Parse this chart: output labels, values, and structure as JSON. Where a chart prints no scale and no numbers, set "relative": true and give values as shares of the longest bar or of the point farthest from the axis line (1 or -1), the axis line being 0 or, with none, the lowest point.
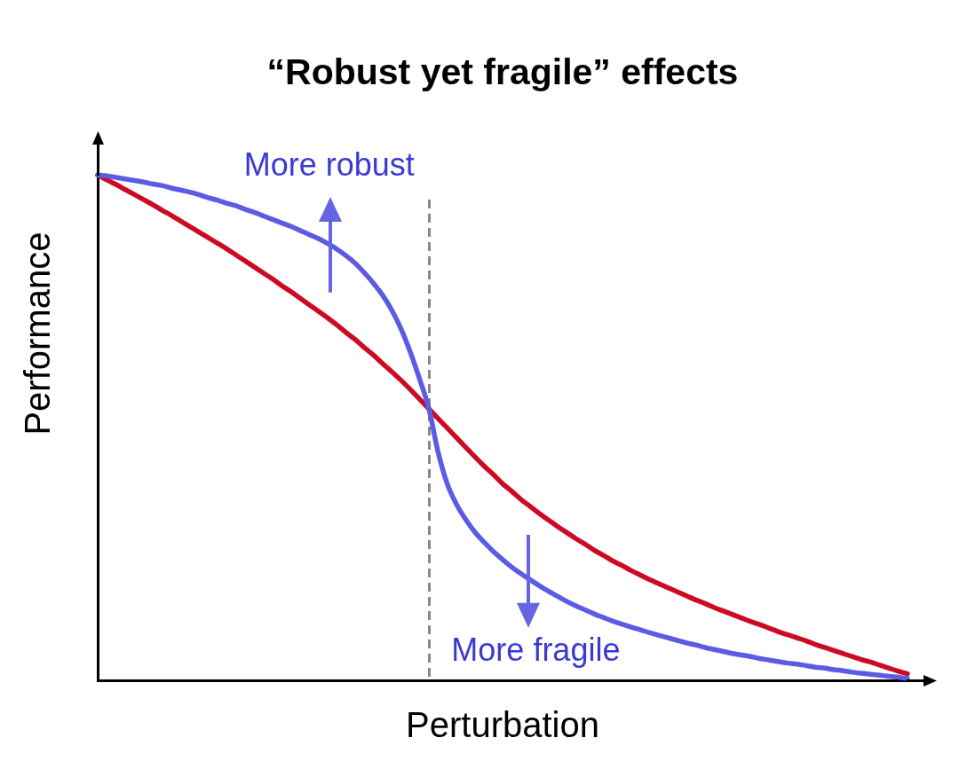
{
  "chart_data": {
    "type": "line",
    "title": "“Robust yet fragile” effects",
    "xlabel": "Perturbation",
    "ylabel": "Performance",
    "relative": true,
    "categories": [
      null,
      null,
      null,
      null,
      null,
      null,
      null,
      null,
      null,
      null,
      null,
      null,
      null,
      null,
      null,
      null,
      null,
      null,
      null,
      null,
      null,
      null,
      null,
      null,
      null,
      null,
      null,
      null,
      null,
      null,
      null,
      null,
      null,
      null,
      null,
      null,
      null,
      null,
      null,
      null,
      null,
      null,
      null,
      null,
      null,
      null,
      null,
      null,
      null,
      null,
      null,
      null,
      null,
      null,
      null,
      null,
      null,
      null,
      null,
      null,
      null,
      null,
      null,
      null,
      null,
      null,
      null,
      null,
      null,
      null,
      null,
      null,
      null,
      null,
      null,
      null,
      null,
      null,
      null,
      null,
      null,
      null,
      null,
      null,
      null,
      null,
      null,
      null,
      null
    ],
    "series": [
      {
        "color": "#cc0a24",
        "values": [
          1.0,
          0.99,
          0.981,
          0.971,
          0.961,
          0.951,
          0.941,
          0.93,
          0.92,
          0.909,
          0.898,
          0.887,
          0.876,
          0.865,
          0.854,
          0.842,
          0.83,
          0.818,
          0.806,
          0.794,
          0.781,
          0.769,
          0.756,
          0.743,
          0.73,
          0.717,
          0.703,
          0.688,
          0.674,
          0.658,
          0.643,
          0.626,
          0.61,
          0.593,
          0.575,
          0.556,
          0.537,
          0.518,
          0.499,
          0.48,
          0.461,
          0.442,
          0.424,
          0.407,
          0.389,
          0.374,
          0.358,
          0.344,
          0.33,
          0.317,
          0.304,
          0.292,
          0.28,
          0.269,
          0.257,
          0.247,
          0.236,
          0.227,
          0.217,
          0.208,
          0.199,
          0.191,
          0.183,
          0.175,
          0.167,
          0.159,
          0.152,
          0.144,
          0.137,
          0.13,
          0.123,
          0.116,
          0.11,
          0.103,
          0.096,
          0.09,
          0.084,
          0.078,
          0.071,
          0.065,
          0.059,
          0.053,
          0.047,
          0.041,
          0.036,
          0.03,
          0.024,
          0.018,
          0.013
        ]
      },
      {
        "color": "#5b5be3",
        "values": [
          1.0,
          0.998,
          0.995,
          0.992,
          0.989,
          0.986,
          0.982,
          0.979,
          0.974,
          0.97,
          0.966,
          0.961,
          0.955,
          0.95,
          0.944,
          0.939,
          0.932,
          0.926,
          0.919,
          0.912,
          0.905,
          0.898,
          0.89,
          0.882,
          0.874,
          0.864,
          0.853,
          0.84,
          0.825,
          0.806,
          0.785,
          0.761,
          0.731,
          0.694,
          0.648,
          0.595,
          0.537,
          0.451,
          0.388,
          0.348,
          0.318,
          0.293,
          0.273,
          0.255,
          0.239,
          0.224,
          0.211,
          0.199,
          0.187,
          0.176,
          0.166,
          0.156,
          0.147,
          0.139,
          0.131,
          0.124,
          0.117,
          0.111,
          0.105,
          0.1,
          0.094,
          0.089,
          0.084,
          0.079,
          0.074,
          0.07,
          0.065,
          0.061,
          0.057,
          0.053,
          0.05,
          0.047,
          0.043,
          0.04,
          0.037,
          0.034,
          0.032,
          0.029,
          0.026,
          0.024,
          0.021,
          0.019,
          0.016,
          0.014,
          0.012,
          0.01,
          0.008,
          0.006,
          0.004
        ]
      }
    ],
    "annotations": [
      "More robust",
      "More fragile"
    ],
    "marker": "none",
    "line_style": "solid",
    "legend": false,
    "grid": false,
    "tick_labels": false
  }
}
